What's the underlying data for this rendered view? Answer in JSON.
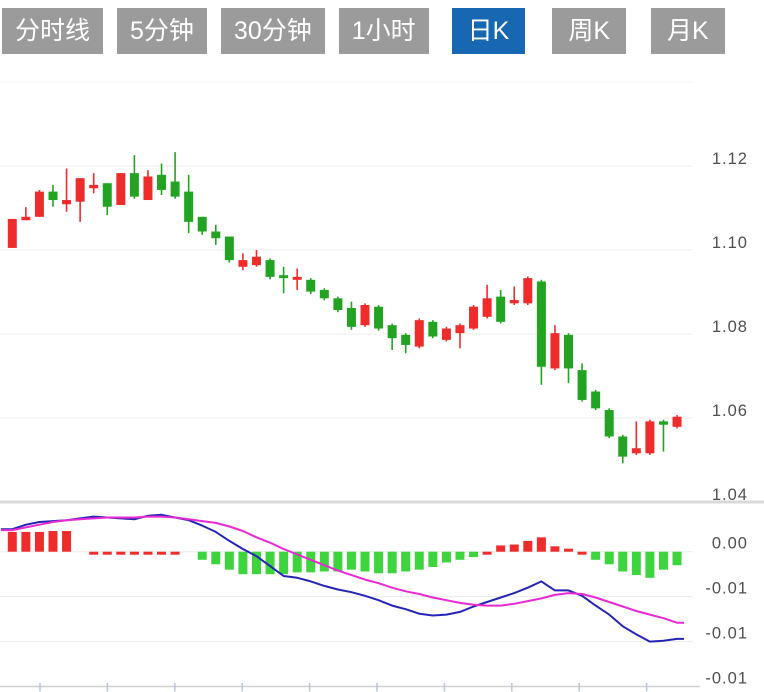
{
  "ui": {
    "tabs": [
      {
        "label": "分时线",
        "active": false
      },
      {
        "label": "5分钟",
        "active": false
      },
      {
        "label": "30分钟",
        "active": false
      },
      {
        "label": "1小时",
        "active": false
      },
      {
        "label": "日K",
        "active": true
      },
      {
        "label": "周K",
        "active": false
      },
      {
        "label": "月K",
        "active": false
      }
    ]
  },
  "chart_data": {
    "type": "candlestick",
    "subtype": "daily-k-with-macd",
    "price_axis": {
      "labels": [
        "1.12",
        "1.10",
        "1.08",
        "1.06",
        "1.04"
      ],
      "values": [
        1.12,
        1.1,
        1.08,
        1.06,
        1.04
      ],
      "extra_gridline_value": 1.14,
      "ylim": [
        1.035,
        1.135
      ],
      "position": "right"
    },
    "macd_axis": {
      "labels": [
        "0.00",
        "-0.01",
        "-0.01",
        "-0.01"
      ],
      "values": [
        0,
        -0.005,
        -0.01,
        -0.015
      ],
      "position": "right"
    },
    "candles_ohlc": [
      [
        1.1005,
        1.1074,
        1.1005,
        1.1074
      ],
      [
        1.1071,
        1.1102,
        1.1071,
        1.1079
      ],
      [
        1.1079,
        1.1143,
        1.1079,
        1.1139
      ],
      [
        1.1139,
        1.1155,
        1.1103,
        1.1119
      ],
      [
        1.1109,
        1.1194,
        1.1091,
        1.1119
      ],
      [
        1.1115,
        1.1171,
        1.1067,
        1.1171
      ],
      [
        1.1147,
        1.1183,
        1.1135,
        1.1155
      ],
      [
        1.1159,
        1.1159,
        1.1083,
        1.1103
      ],
      [
        1.1107,
        1.1183,
        1.1107,
        1.1183
      ],
      [
        1.1183,
        1.1226,
        1.1122,
        1.1127
      ],
      [
        1.1119,
        1.119,
        1.1119,
        1.1175
      ],
      [
        1.1179,
        1.1206,
        1.1131,
        1.1143
      ],
      [
        1.1163,
        1.1233,
        1.1122,
        1.1127
      ],
      [
        1.1139,
        1.1179,
        1.104,
        1.1067
      ],
      [
        1.1079,
        1.1079,
        1.1036,
        1.1044
      ],
      [
        1.1044,
        1.106,
        1.1012,
        1.1028
      ],
      [
        1.1032,
        1.1032,
        1.097,
        1.0976
      ],
      [
        1.096,
        1.0992,
        1.0952,
        1.0976
      ],
      [
        1.0964,
        1.1,
        1.096,
        1.0984
      ],
      [
        1.0976,
        1.098,
        1.093,
        1.0936
      ],
      [
        1.094,
        1.096,
        1.0897,
        1.0933
      ],
      [
        1.0929,
        1.0956,
        1.0905,
        1.0936
      ],
      [
        1.0929,
        1.0933,
        1.0895,
        1.0901
      ],
      [
        1.0905,
        1.0909,
        1.088,
        1.0885
      ],
      [
        1.0885,
        1.0889,
        1.0852,
        1.0857
      ],
      [
        1.0862,
        1.0877,
        1.081,
        1.0817
      ],
      [
        1.0821,
        1.0873,
        1.0817,
        1.0869
      ],
      [
        1.0865,
        1.0869,
        1.0808,
        1.0813
      ],
      [
        1.0821,
        1.0825,
        1.0762,
        1.079
      ],
      [
        1.0798,
        1.0802,
        1.0754,
        1.0774
      ],
      [
        1.077,
        1.0837,
        1.0766,
        1.0833
      ],
      [
        1.0829,
        1.0833,
        1.079,
        1.0794
      ],
      [
        1.0786,
        1.0817,
        1.0782,
        1.0813
      ],
      [
        1.0802,
        1.0825,
        1.0766,
        1.0821
      ],
      [
        1.0813,
        1.0869,
        1.081,
        1.0865
      ],
      [
        1.0841,
        1.0917,
        1.0837,
        1.0885
      ],
      [
        1.0889,
        1.0905,
        1.0825,
        1.0829
      ],
      [
        1.0873,
        1.0913,
        1.0869,
        1.0881
      ],
      [
        1.0873,
        1.0937,
        1.0869,
        1.0933
      ],
      [
        1.0925,
        1.0929,
        1.0679,
        1.0722
      ],
      [
        1.0718,
        1.0821,
        1.0714,
        1.0802
      ],
      [
        1.0798,
        1.0802,
        1.0683,
        1.0718
      ],
      [
        1.0714,
        1.073,
        1.0639,
        1.0643
      ],
      [
        1.0663,
        1.0667,
        1.0619,
        1.0623
      ],
      [
        1.0619,
        1.0623,
        1.0552,
        1.0556
      ],
      [
        1.0556,
        1.056,
        1.0492,
        1.0508
      ],
      [
        1.0516,
        1.0592,
        1.0512,
        1.0528
      ],
      [
        1.0516,
        1.0596,
        1.0512,
        1.0592
      ],
      [
        1.0592,
        1.0596,
        1.052,
        1.0584
      ],
      [
        1.0579,
        1.0607,
        1.0575,
        1.0603
      ]
    ],
    "macd": {
      "histogram": [
        0.0022,
        0.0022,
        0.0022,
        0.0023,
        0.0023,
        0,
        -0.0002,
        -0.0002,
        -0.0002,
        -0.0002,
        -0.0002,
        -0.0002,
        -0.0002,
        0,
        -0.0009,
        -0.0014,
        -0.002,
        -0.0025,
        -0.0025,
        -0.0025,
        -0.0025,
        -0.0023,
        -0.0023,
        -0.0022,
        -0.0022,
        -0.002,
        -0.0022,
        -0.0024,
        -0.0024,
        -0.0022,
        -0.002,
        -0.0017,
        -0.0012,
        -0.0009,
        -0.0006,
        -0.0001,
        0.0007,
        0.0008,
        0.0012,
        0.0016,
        0.0006,
        0.0003,
        -0.0001,
        -0.0009,
        -0.0014,
        -0.0022,
        -0.0026,
        -0.0029,
        -0.002,
        -0.0015
      ],
      "histogram_colors": [
        "r",
        "r",
        "r",
        "r",
        "r",
        "r",
        "r",
        "r",
        "r",
        "r",
        "r",
        "r",
        "r",
        "g",
        "g",
        "g",
        "g",
        "g",
        "g",
        "g",
        "g",
        "g",
        "g",
        "g",
        "g",
        "g",
        "g",
        "g",
        "g",
        "g",
        "g",
        "g",
        "g",
        "g",
        "g",
        "r",
        "r",
        "r",
        "r",
        "r",
        "r",
        "r",
        "r",
        "g",
        "g",
        "g",
        "g",
        "g",
        "g",
        "g"
      ],
      "dif": [
        0.0025,
        0.003,
        0.0033,
        0.0034,
        0.0035,
        0.0037,
        0.0039,
        0.0038,
        0.0037,
        0.0036,
        0.004,
        0.0041,
        0.0038,
        0.0035,
        0.0029,
        0.0022,
        0.0012,
        0.0003,
        -0.0005,
        -0.0016,
        -0.0027,
        -0.0029,
        -0.0033,
        -0.0038,
        -0.0042,
        -0.0045,
        -0.0049,
        -0.0054,
        -0.006,
        -0.0064,
        -0.0069,
        -0.0071,
        -0.007,
        -0.0067,
        -0.0061,
        -0.0056,
        -0.0051,
        -0.0046,
        -0.004,
        -0.0033,
        -0.0043,
        -0.0043,
        -0.0049,
        -0.006,
        -0.007,
        -0.0083,
        -0.0092,
        -0.01,
        -0.0099,
        -0.0097
      ],
      "dea": [
        0.0024,
        0.0027,
        0.003,
        0.0033,
        0.0035,
        0.0036,
        0.0037,
        0.0038,
        0.0038,
        0.0038,
        0.0039,
        0.0039,
        0.0038,
        0.0036,
        0.0034,
        0.0032,
        0.0028,
        0.0023,
        0.0016,
        0.001,
        0.0003,
        -0.0003,
        -0.0009,
        -0.0015,
        -0.0021,
        -0.0026,
        -0.0031,
        -0.0035,
        -0.004,
        -0.0044,
        -0.0047,
        -0.0051,
        -0.0054,
        -0.0057,
        -0.0059,
        -0.006,
        -0.006,
        -0.0058,
        -0.0055,
        -0.0052,
        -0.0048,
        -0.0046,
        -0.0047,
        -0.0051,
        -0.0056,
        -0.0061,
        -0.0066,
        -0.007,
        -0.0074,
        -0.0079
      ]
    },
    "colors": {
      "up_candle": "#ee2c2c",
      "down_candle": "#22a422",
      "hist_red": "#ee2c2c",
      "hist_green": "#3ed43e",
      "dif_line": "#2525b5",
      "dea_line": "#e72ad4",
      "grid": "#ececec",
      "grid_faint": "#f5f5f5",
      "panel_divider": "#d9d9d9",
      "axis_line": "#cfcfcf",
      "axis_tick": "#b7c6d8",
      "axis_text": "#4f4f4f",
      "tab_bg": "#9b9b9b",
      "tab_active_bg": "#1767b3",
      "tab_text": "#ffffff"
    },
    "legend_visible": false,
    "x_axis_tick_count": 10
  }
}
